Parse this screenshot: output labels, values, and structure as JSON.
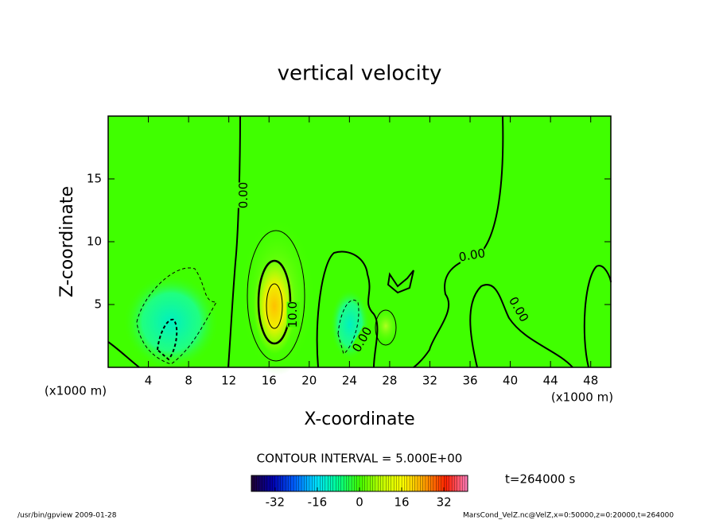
{
  "chart_data": {
    "type": "contour",
    "title": "vertical velocity",
    "xlabel": "X-coordinate",
    "ylabel": "Z-coordinate",
    "xunit": "(x1000 m)",
    "xlim": [
      0,
      50
    ],
    "ylim": [
      0,
      20
    ],
    "xticks": [
      4,
      8,
      12,
      16,
      20,
      24,
      28,
      32,
      36,
      40,
      44,
      48
    ],
    "yticks": [
      5,
      10,
      15
    ],
    "contour_interval": "CONTOUR INTERVAL = 5.000E+00",
    "contour_labels": [
      {
        "text": "0.00",
        "x": 13.5,
        "y": 13.7
      },
      {
        "text": "10.0",
        "x": 18.4,
        "y": 4.2
      },
      {
        "text": "0.00",
        "x": 36.2,
        "y": 8.9
      },
      {
        "text": "0.00",
        "x": 40.8,
        "y": 4.6
      },
      {
        "text": "0.00",
        "x": 25.3,
        "y": 2.2
      }
    ],
    "colorbar": {
      "clim": [
        -41,
        41
      ],
      "ticks": [
        -32,
        -16,
        0,
        16,
        32
      ],
      "colormap": [
        "#200030",
        "#0000b0",
        "#0060ff",
        "#00e0ff",
        "#00ff90",
        "#40ff00",
        "#c0ff00",
        "#ffff00",
        "#ffa000",
        "#ff2000",
        "#ff80c0"
      ]
    },
    "time": "t=264000 s",
    "footer_left": "/usr/bin/gpview  2009-01-28",
    "footer_right": "MarsCond_VelZ.nc@VelZ,x=0:50000,z=0:20000,t=264000"
  }
}
